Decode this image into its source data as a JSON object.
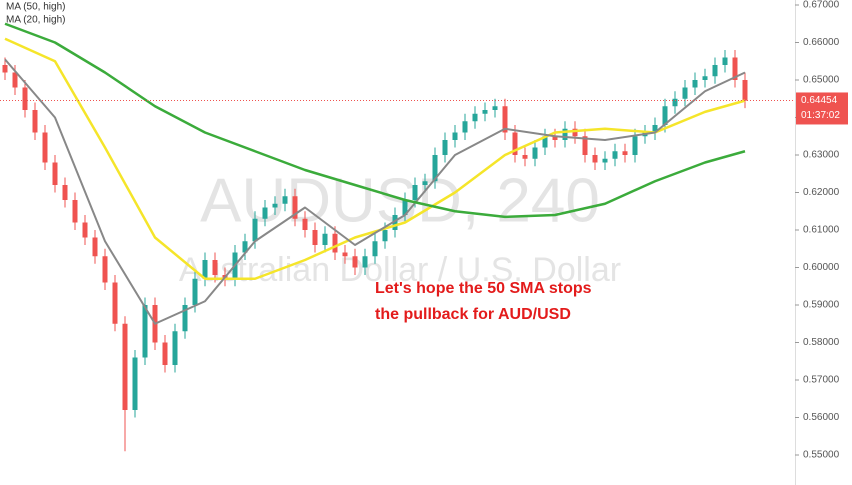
{
  "chart_data": {
    "type": "candlestick",
    "title": "AUDUSD, 240",
    "subtitle": "Australian Dollar / U.S. Dollar",
    "annotation": [
      "Let's hope the 50 SMA stops",
      "the pullback for AUD/USD"
    ],
    "up_color": "#26a69a",
    "down_color": "#ef5350",
    "open": [
      0.654,
      0.652,
      0.648,
      0.642,
      0.636,
      0.628,
      0.622,
      0.618,
      0.612,
      0.608,
      0.603,
      0.596,
      0.585,
      0.562,
      0.576,
      0.59,
      0.58,
      0.574,
      0.583,
      0.59,
      0.597,
      0.602,
      0.598,
      0.597,
      0.604,
      0.607,
      0.613,
      0.616,
      0.617,
      0.619,
      0.613,
      0.61,
      0.606,
      0.609,
      0.604,
      0.603,
      0.6,
      0.603,
      0.607,
      0.61,
      0.614,
      0.618,
      0.622,
      0.623,
      0.63,
      0.634,
      0.636,
      0.639,
      0.641,
      0.642,
      0.643,
      0.636,
      0.63,
      0.629,
      0.632,
      0.635,
      0.634,
      0.637,
      0.635,
      0.63,
      0.628,
      0.629,
      0.631,
      0.63,
      0.635,
      0.636,
      0.638,
      0.643,
      0.645,
      0.648,
      0.65,
      0.651,
      0.654,
      0.656,
      0.65
    ],
    "high": [
      0.656,
      0.654,
      0.65,
      0.644,
      0.638,
      0.63,
      0.624,
      0.62,
      0.614,
      0.61,
      0.605,
      0.598,
      0.587,
      0.578,
      0.592,
      0.592,
      0.582,
      0.585,
      0.592,
      0.599,
      0.604,
      0.604,
      0.6,
      0.606,
      0.609,
      0.615,
      0.618,
      0.619,
      0.621,
      0.621,
      0.615,
      0.612,
      0.611,
      0.611,
      0.606,
      0.605,
      0.605,
      0.609,
      0.612,
      0.616,
      0.62,
      0.624,
      0.625,
      0.632,
      0.636,
      0.638,
      0.641,
      0.643,
      0.644,
      0.645,
      0.645,
      0.638,
      0.632,
      0.634,
      0.637,
      0.637,
      0.639,
      0.639,
      0.637,
      0.632,
      0.631,
      0.633,
      0.633,
      0.637,
      0.638,
      0.64,
      0.645,
      0.647,
      0.65,
      0.652,
      0.653,
      0.656,
      0.658,
      0.658,
      0.652
    ],
    "low": [
      0.65,
      0.646,
      0.64,
      0.634,
      0.626,
      0.62,
      0.616,
      0.61,
      0.606,
      0.601,
      0.594,
      0.583,
      0.551,
      0.56,
      0.574,
      0.578,
      0.572,
      0.572,
      0.581,
      0.588,
      0.595,
      0.596,
      0.595,
      0.595,
      0.602,
      0.605,
      0.611,
      0.614,
      0.615,
      0.611,
      0.608,
      0.604,
      0.604,
      0.602,
      0.601,
      0.598,
      0.598,
      0.601,
      0.605,
      0.608,
      0.612,
      0.616,
      0.62,
      0.621,
      0.628,
      0.632,
      0.634,
      0.637,
      0.639,
      0.64,
      0.634,
      0.628,
      0.627,
      0.627,
      0.63,
      0.632,
      0.632,
      0.633,
      0.628,
      0.626,
      0.626,
      0.627,
      0.628,
      0.628,
      0.633,
      0.634,
      0.636,
      0.641,
      0.643,
      0.646,
      0.648,
      0.649,
      0.652,
      0.648,
      0.6425
    ],
    "close": [
      0.652,
      0.648,
      0.642,
      0.636,
      0.628,
      0.622,
      0.618,
      0.612,
      0.608,
      0.603,
      0.596,
      0.585,
      0.562,
      0.576,
      0.59,
      0.58,
      0.574,
      0.583,
      0.59,
      0.597,
      0.602,
      0.598,
      0.597,
      0.604,
      0.607,
      0.613,
      0.616,
      0.617,
      0.619,
      0.613,
      0.61,
      0.606,
      0.609,
      0.604,
      0.603,
      0.6,
      0.603,
      0.607,
      0.61,
      0.614,
      0.618,
      0.622,
      0.623,
      0.63,
      0.634,
      0.636,
      0.639,
      0.641,
      0.642,
      0.643,
      0.636,
      0.63,
      0.629,
      0.632,
      0.635,
      0.634,
      0.637,
      0.635,
      0.63,
      0.628,
      0.629,
      0.631,
      0.63,
      0.635,
      0.636,
      0.638,
      0.643,
      0.645,
      0.648,
      0.65,
      0.651,
      0.654,
      0.656,
      0.65,
      0.6445
    ],
    "series": [
      {
        "name": "MA (50, high)",
        "color": "#f5e52a",
        "x": [
          0,
          5,
          10,
          15,
          20,
          25,
          30,
          35,
          40,
          45,
          50,
          55,
          60,
          65,
          70,
          74
        ],
        "values": [
          0.661,
          0.655,
          0.632,
          0.608,
          0.597,
          0.597,
          0.602,
          0.608,
          0.612,
          0.62,
          0.63,
          0.636,
          0.637,
          0.636,
          0.6415,
          0.6445
        ]
      },
      {
        "name": "MA (20, high)",
        "color": "#888888",
        "x": [
          0,
          5,
          10,
          15,
          20,
          25,
          30,
          35,
          40,
          45,
          50,
          55,
          60,
          65,
          70,
          74
        ],
        "values": [
          0.6555,
          0.64,
          0.607,
          0.585,
          0.591,
          0.607,
          0.616,
          0.606,
          0.614,
          0.63,
          0.637,
          0.635,
          0.634,
          0.636,
          0.647,
          0.652
        ]
      },
      {
        "color": "#3bab3b",
        "x": [
          0,
          5,
          10,
          15,
          20,
          25,
          30,
          35,
          40,
          45,
          50,
          55,
          60,
          65,
          70,
          74
        ],
        "values": [
          0.665,
          0.66,
          0.652,
          0.643,
          0.636,
          0.631,
          0.626,
          0.622,
          0.618,
          0.615,
          0.6135,
          0.614,
          0.617,
          0.623,
          0.628,
          0.631
        ]
      }
    ],
    "price_line": {
      "value": 0.64454,
      "label": "0.64454",
      "color": "#ef5350"
    },
    "countdown": "01:37:02",
    "xlim": [
      -0.5,
      79
    ],
    "ylim": [
      0.542,
      0.671333
    ],
    "yticks": [
      {
        "value": 0.55,
        "label": "0.55000"
      },
      {
        "value": 0.56,
        "label": "0.56000"
      },
      {
        "value": 0.57,
        "label": "0.57000"
      },
      {
        "value": 0.58,
        "label": "0.58000"
      },
      {
        "value": 0.59,
        "label": "0.59000"
      },
      {
        "value": 0.6,
        "label": "0.60000"
      },
      {
        "value": 0.61,
        "label": "0.61000"
      },
      {
        "value": 0.62,
        "label": "0.62000"
      },
      {
        "value": 0.63,
        "label": "0.63000"
      },
      {
        "value": 0.64,
        "label": "0.64000"
      },
      {
        "value": 0.65,
        "label": "0.65000"
      },
      {
        "value": 0.66,
        "label": "0.66000"
      },
      {
        "value": 0.67,
        "label": "0.67000"
      }
    ]
  }
}
